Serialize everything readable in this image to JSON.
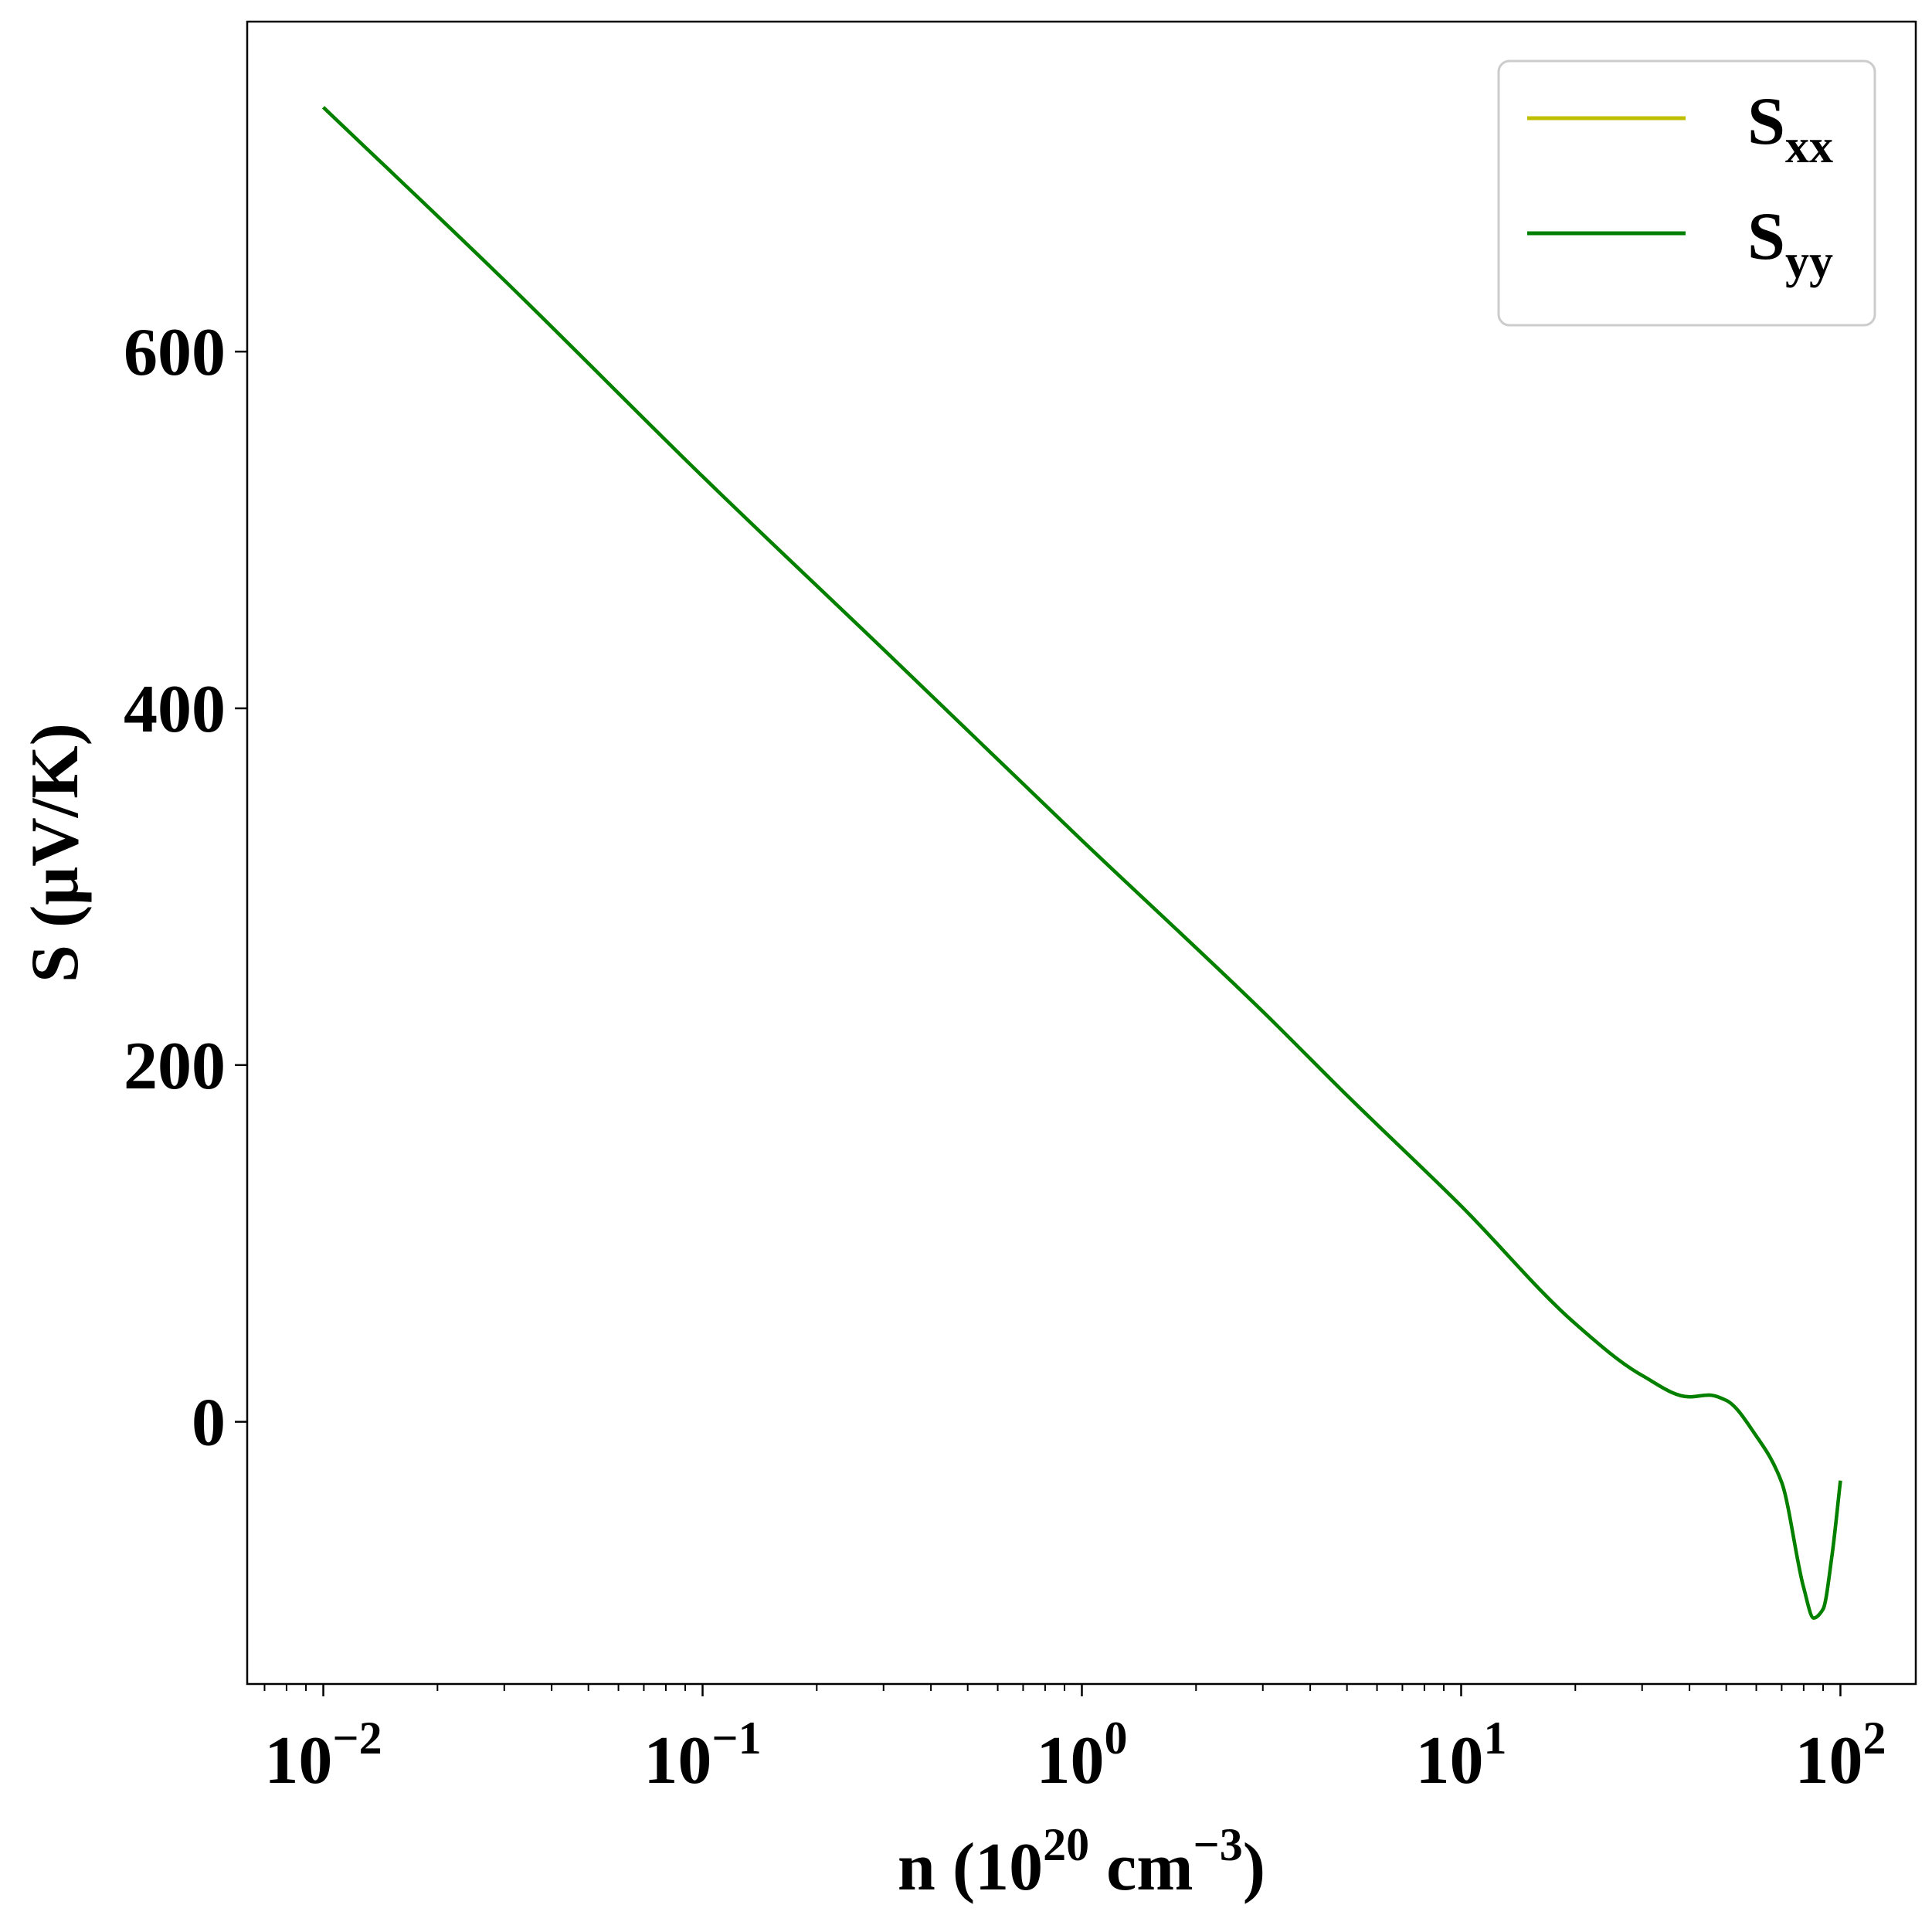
{
  "chart_data": {
    "type": "line",
    "xscale": "log",
    "xlim": [
      0.0063,
      158
    ],
    "ylim": [
      -147,
      785
    ],
    "xlabel": {
      "base": "n (10",
      "exp": "20",
      "mid": " cm",
      "exp2": "−3",
      "tail": ")"
    },
    "ylabel": "S (μV/K)",
    "xticks": [
      {
        "value": 0.01,
        "base": "10",
        "exp": "−2"
      },
      {
        "value": 0.1,
        "base": "10",
        "exp": "−1"
      },
      {
        "value": 1,
        "base": "10",
        "exp": "0"
      },
      {
        "value": 10,
        "base": "10",
        "exp": "1"
      },
      {
        "value": 100,
        "base": "10",
        "exp": "2"
      }
    ],
    "yticks": [
      {
        "value": 0,
        "label": "0"
      },
      {
        "value": 200,
        "label": "200"
      },
      {
        "value": 400,
        "label": "400"
      },
      {
        "value": 600,
        "label": "600"
      }
    ],
    "grid": false,
    "legend": {
      "position": "top-right",
      "entries": [
        {
          "base": "S",
          "sub": "xx",
          "color": "#bfbf00"
        },
        {
          "base": "S",
          "sub": "yy",
          "color": "#008000"
        }
      ]
    },
    "series": [
      {
        "name": "Sxx",
        "color": "#bfbf00",
        "x": [
          0.01,
          0.03,
          0.1,
          0.3,
          1,
          3,
          5,
          10,
          20,
          30,
          40,
          45,
          50,
          60,
          70,
          80,
          85,
          90,
          95,
          100
        ],
        "y": [
          737,
          640,
          530,
          433,
          326,
          230,
          183,
          121,
          55,
          26,
          14,
          15,
          12,
          -8,
          -34,
          -93,
          -110,
          -105,
          -75,
          -33
        ]
      },
      {
        "name": "Syy",
        "color": "#008000",
        "x": [
          0.01,
          0.03,
          0.1,
          0.3,
          1,
          3,
          5,
          10,
          20,
          30,
          40,
          45,
          50,
          60,
          70,
          80,
          85,
          90,
          95,
          100
        ],
        "y": [
          737,
          640,
          530,
          433,
          326,
          230,
          183,
          121,
          55,
          26,
          14,
          15,
          12,
          -8,
          -34,
          -93,
          -110,
          -105,
          -75,
          -33
        ]
      }
    ]
  }
}
